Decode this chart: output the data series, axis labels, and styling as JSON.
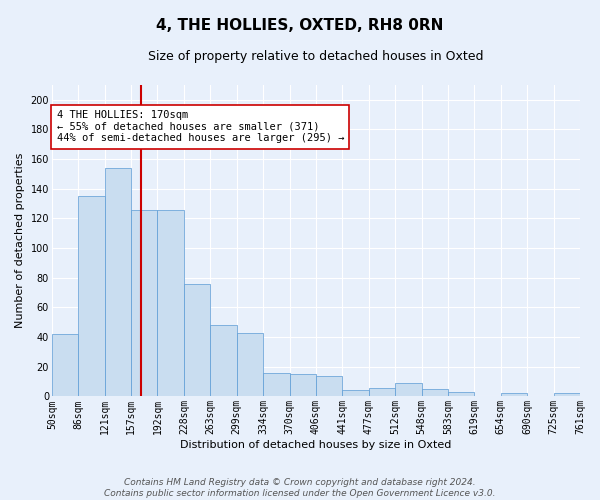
{
  "title": "4, THE HOLLIES, OXTED, RH8 0RN",
  "subtitle": "Size of property relative to detached houses in Oxted",
  "xlabel": "Distribution of detached houses by size in Oxted",
  "ylabel": "Number of detached properties",
  "bin_labels": [
    "50sqm",
    "86sqm",
    "121sqm",
    "157sqm",
    "192sqm",
    "228sqm",
    "263sqm",
    "299sqm",
    "334sqm",
    "370sqm",
    "406sqm",
    "441sqm",
    "477sqm",
    "512sqm",
    "548sqm",
    "583sqm",
    "619sqm",
    "654sqm",
    "690sqm",
    "725sqm",
    "761sqm"
  ],
  "bar_heights": [
    42,
    135,
    154,
    126,
    126,
    76,
    48,
    43,
    16,
    15,
    14,
    4,
    6,
    9,
    5,
    3,
    0,
    2,
    0,
    2
  ],
  "bar_color": "#c9ddf0",
  "bar_edge_color": "#5b9bd5",
  "vline_color": "#cc0000",
  "annotation_text": "4 THE HOLLIES: 170sqm\n← 55% of detached houses are smaller (371)\n44% of semi-detached houses are larger (295) →",
  "annotation_box_color": "#ffffff",
  "annotation_box_edge_color": "#cc0000",
  "ylim": [
    0,
    210
  ],
  "yticks": [
    0,
    20,
    40,
    60,
    80,
    100,
    120,
    140,
    160,
    180,
    200
  ],
  "background_color": "#e8f0fb",
  "footer_text": "Contains HM Land Registry data © Crown copyright and database right 2024.\nContains public sector information licensed under the Open Government Licence v3.0.",
  "title_fontsize": 11,
  "subtitle_fontsize": 9,
  "axis_label_fontsize": 8,
  "tick_fontsize": 7,
  "annotation_fontsize": 7.5,
  "footer_fontsize": 6.5
}
